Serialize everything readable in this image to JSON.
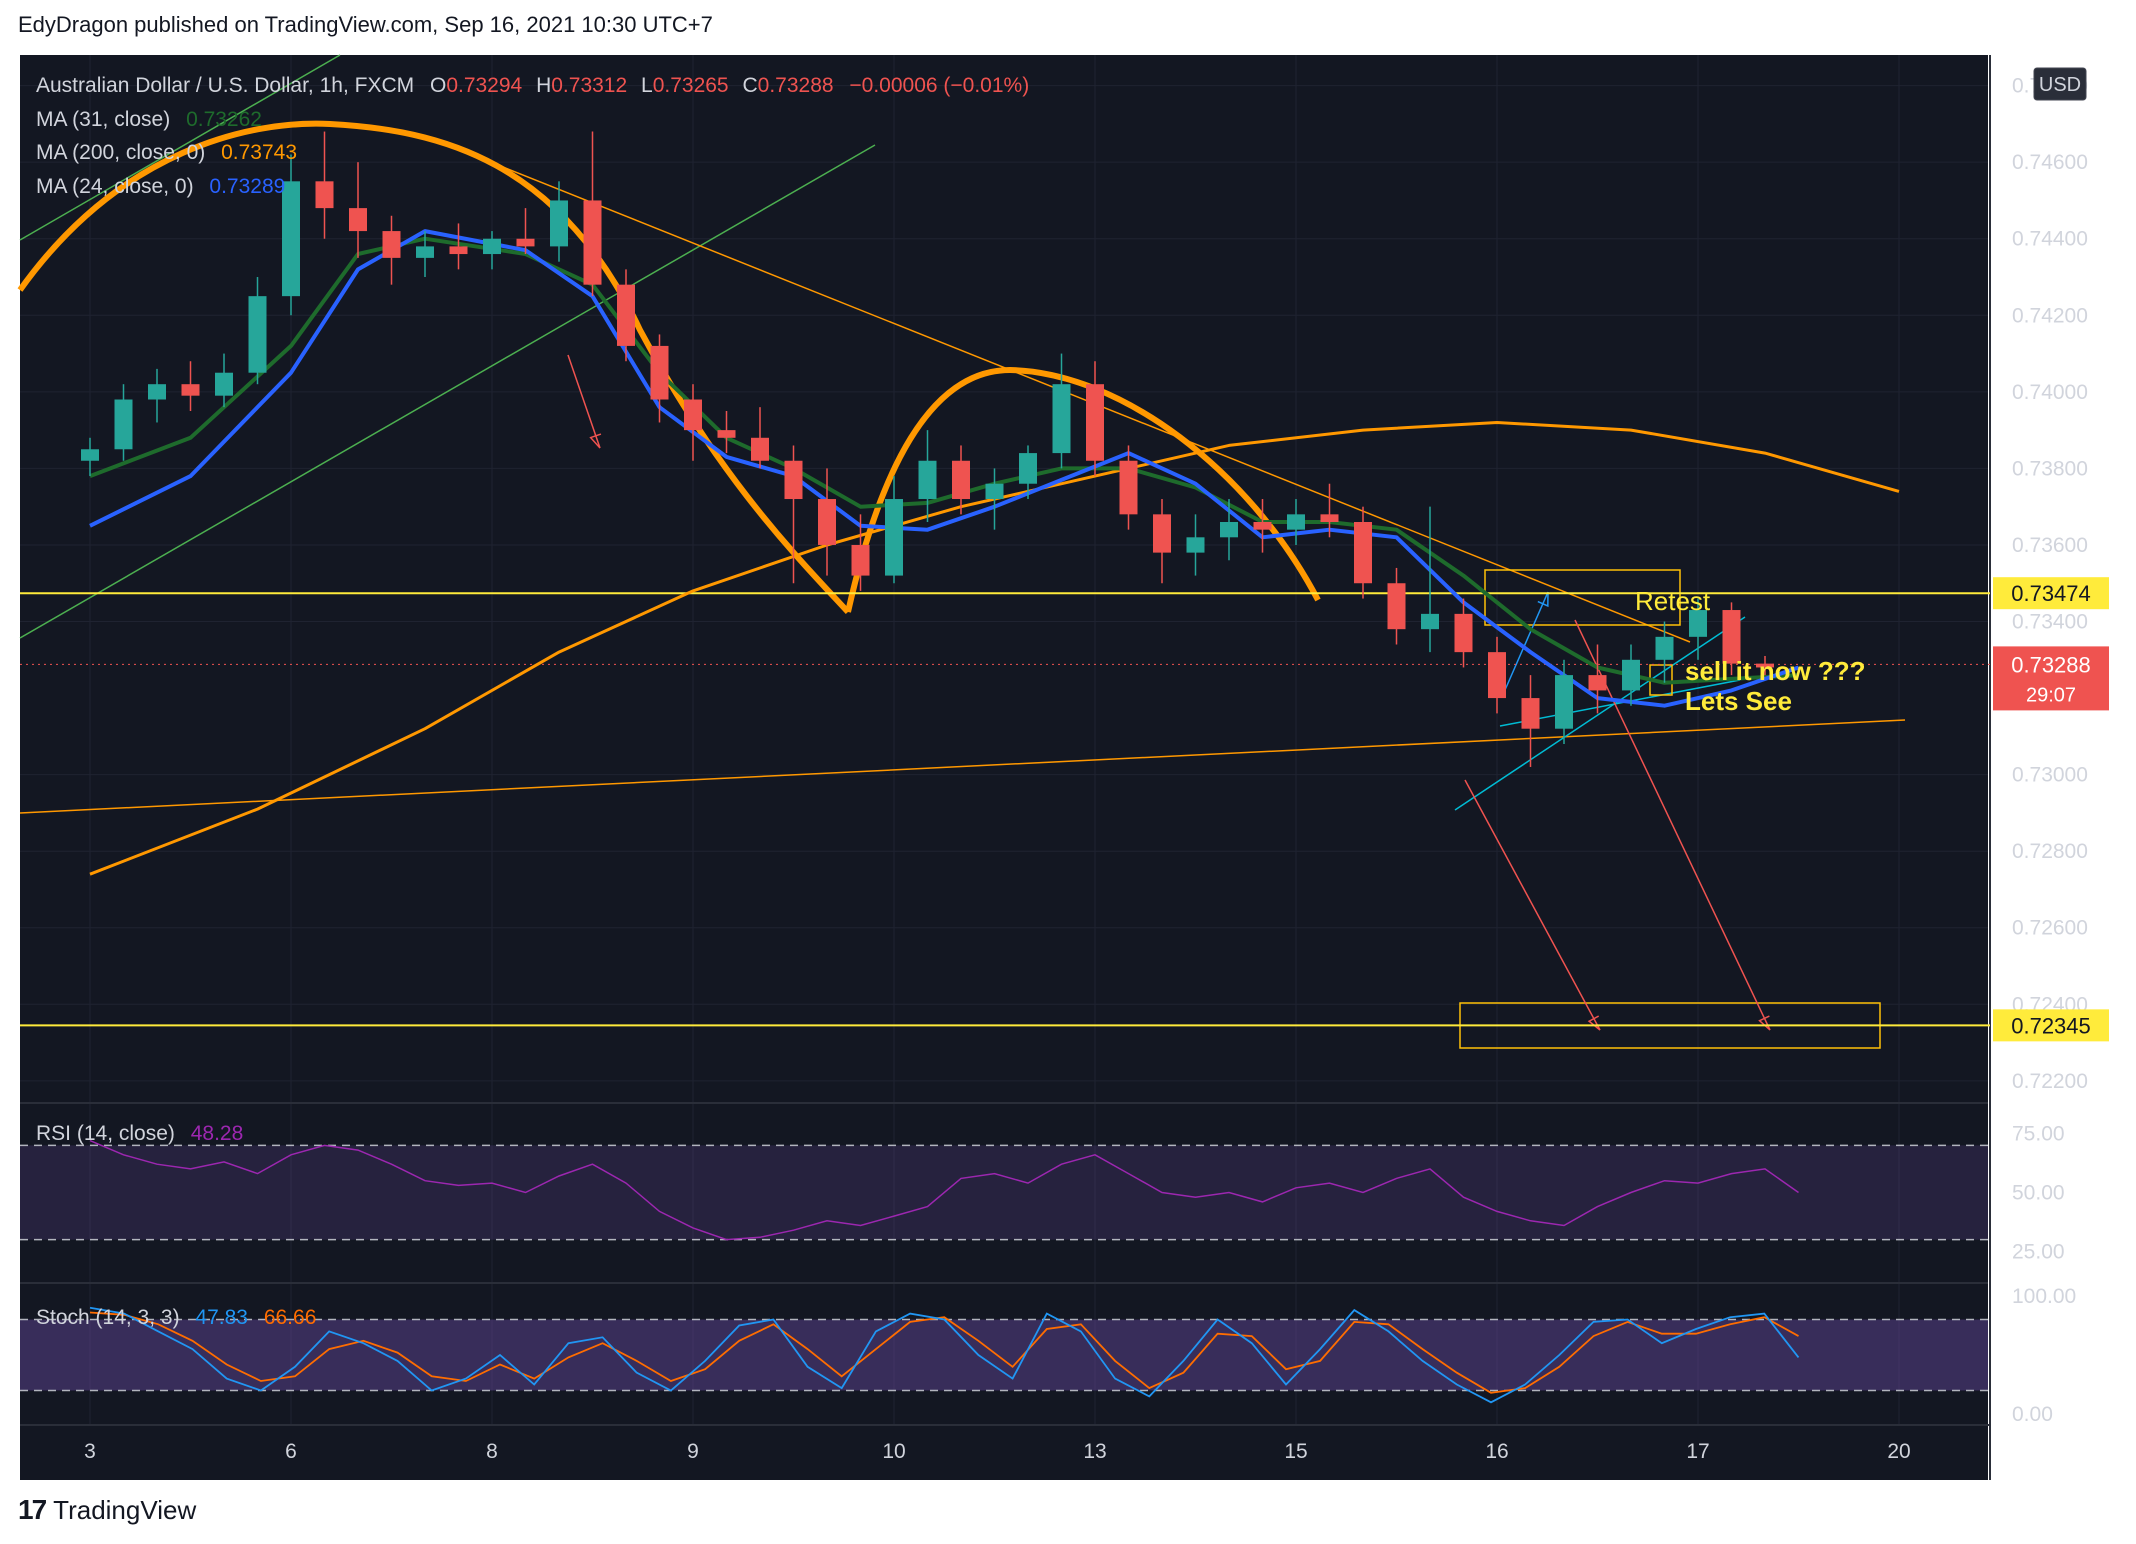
{
  "header": {
    "published": "EdyDragon published on TradingView.com, Sep 16, 2021 10:30 UTC+7"
  },
  "footer": {
    "brand": "TradingView",
    "logo_icon": "tradingview-logo-icon"
  },
  "legend": {
    "symbol": "Australian Dollar / U.S. Dollar, 1h, FXCM",
    "ohlc": [
      {
        "k": "O",
        "v": "0.73294"
      },
      {
        "k": "H",
        "v": "0.73312"
      },
      {
        "k": "L",
        "v": "0.73265"
      },
      {
        "k": "C",
        "v": "0.73288"
      }
    ],
    "change": "−0.00006 (−0.01%)",
    "ma31_label": "MA (31, close)",
    "ma31_value": "0.73262",
    "ma200_label": "MA (200, close, 0)",
    "ma200_value": "0.73743",
    "ma24_label": "MA (24, close, 0)",
    "ma24_value": "0.73289"
  },
  "colors": {
    "background": "#131722",
    "up": "#26a69a",
    "down": "#ef5350",
    "ma31": "#1e6b2c",
    "ma200": "#ff9800",
    "ma24": "#2962ff",
    "level": "#ffeb3b",
    "trend": "#ff9800",
    "rsi": "#9c27b0",
    "stoch_k": "#2196f3",
    "stoch_d": "#ff6d00"
  },
  "chart_data": {
    "type": "candlestick",
    "title": "Australian Dollar / U.S. Dollar, 1h, FXCM",
    "currency": "USD",
    "ylim": [
      0.7215,
      0.7488
    ],
    "y_ticks": [
      "0.74800",
      "0.74600",
      "0.74400",
      "0.74200",
      "0.74000",
      "0.73800",
      "0.73600",
      "0.73400",
      "0.73000",
      "0.72800",
      "0.72600",
      "0.72400",
      "0.72200"
    ],
    "x_ticks": [
      "3",
      "6",
      "8",
      "9",
      "10",
      "13",
      "15",
      "16",
      "17",
      "20"
    ],
    "x_tick_pos": [
      0,
      6,
      12,
      18,
      24,
      30,
      36,
      42,
      48,
      54
    ],
    "last_price": "0.73288",
    "countdown": "29:07",
    "levels": [
      {
        "label": "0.73474",
        "value": 0.73474
      },
      {
        "label": "0.72345",
        "value": 0.72345
      }
    ],
    "annotations": [
      "Retest",
      "sell it now ???",
      "Lets See"
    ],
    "ma31": [
      [
        0,
        0.7378
      ],
      [
        3,
        0.7388
      ],
      [
        6,
        0.7412
      ],
      [
        8,
        0.7436
      ],
      [
        10,
        0.744
      ],
      [
        13,
        0.7436
      ],
      [
        15,
        0.7428
      ],
      [
        17,
        0.7405
      ],
      [
        19,
        0.7388
      ],
      [
        21,
        0.738
      ],
      [
        23,
        0.737
      ],
      [
        25,
        0.7371
      ],
      [
        27,
        0.7376
      ],
      [
        29,
        0.738
      ],
      [
        31,
        0.738
      ],
      [
        33,
        0.7375
      ],
      [
        35,
        0.7366
      ],
      [
        37,
        0.7366
      ],
      [
        39,
        0.7364
      ],
      [
        41,
        0.7352
      ],
      [
        43,
        0.7338
      ],
      [
        45,
        0.7328
      ],
      [
        47,
        0.7324
      ],
      [
        49,
        0.7325
      ],
      [
        51,
        0.7326
      ]
    ],
    "ma200": [
      [
        0,
        0.7274
      ],
      [
        5,
        0.7291
      ],
      [
        10,
        0.7312
      ],
      [
        14,
        0.7332
      ],
      [
        18,
        0.7348
      ],
      [
        22,
        0.736
      ],
      [
        26,
        0.737
      ],
      [
        30,
        0.7378
      ],
      [
        34,
        0.7386
      ],
      [
        38,
        0.739
      ],
      [
        42,
        0.7392
      ],
      [
        46,
        0.739
      ],
      [
        50,
        0.7384
      ],
      [
        54,
        0.7374
      ]
    ],
    "ma24": [
      [
        0,
        0.7365
      ],
      [
        3,
        0.7378
      ],
      [
        6,
        0.7405
      ],
      [
        8,
        0.7432
      ],
      [
        10,
        0.7442
      ],
      [
        13,
        0.7437
      ],
      [
        15,
        0.7425
      ],
      [
        17,
        0.7396
      ],
      [
        19,
        0.7383
      ],
      [
        21,
        0.7378
      ],
      [
        23,
        0.7365
      ],
      [
        25,
        0.7364
      ],
      [
        27,
        0.737
      ],
      [
        29,
        0.7377
      ],
      [
        31,
        0.7384
      ],
      [
        33,
        0.7376
      ],
      [
        35,
        0.7362
      ],
      [
        37,
        0.7364
      ],
      [
        39,
        0.7362
      ],
      [
        41,
        0.7345
      ],
      [
        43,
        0.7332
      ],
      [
        45,
        0.732
      ],
      [
        47,
        0.7318
      ],
      [
        49,
        0.7322
      ],
      [
        51,
        0.7328
      ]
    ],
    "candles": [
      [
        0,
        0.7382,
        0.7388,
        0.7378,
        0.7385
      ],
      [
        1,
        0.7385,
        0.7402,
        0.7382,
        0.7398
      ],
      [
        2,
        0.7398,
        0.7406,
        0.7392,
        0.7402
      ],
      [
        3,
        0.7402,
        0.7408,
        0.7395,
        0.7399
      ],
      [
        4,
        0.7399,
        0.741,
        0.7396,
        0.7405
      ],
      [
        5,
        0.7405,
        0.743,
        0.7402,
        0.7425
      ],
      [
        6,
        0.7425,
        0.7462,
        0.742,
        0.7455
      ],
      [
        7,
        0.7455,
        0.7468,
        0.744,
        0.7448
      ],
      [
        8,
        0.7448,
        0.746,
        0.7435,
        0.7442
      ],
      [
        9,
        0.7442,
        0.7446,
        0.7428,
        0.7435
      ],
      [
        10,
        0.7435,
        0.7442,
        0.743,
        0.7438
      ],
      [
        11,
        0.7438,
        0.7444,
        0.7432,
        0.7436
      ],
      [
        12,
        0.7436,
        0.7442,
        0.7432,
        0.744
      ],
      [
        13,
        0.744,
        0.7448,
        0.7436,
        0.7438
      ],
      [
        14,
        0.7438,
        0.7455,
        0.7434,
        0.745
      ],
      [
        15,
        0.745,
        0.7468,
        0.7425,
        0.7428
      ],
      [
        16,
        0.7428,
        0.7432,
        0.7408,
        0.7412
      ],
      [
        17,
        0.7412,
        0.7415,
        0.7392,
        0.7398
      ],
      [
        18,
        0.7398,
        0.7402,
        0.7382,
        0.739
      ],
      [
        19,
        0.739,
        0.7395,
        0.7384,
        0.7388
      ],
      [
        20,
        0.7388,
        0.7396,
        0.738,
        0.7382
      ],
      [
        21,
        0.7382,
        0.7386,
        0.735,
        0.7372
      ],
      [
        22,
        0.7372,
        0.738,
        0.7352,
        0.736
      ],
      [
        23,
        0.736,
        0.7368,
        0.7348,
        0.7352
      ],
      [
        24,
        0.7352,
        0.7378,
        0.735,
        0.7372
      ],
      [
        25,
        0.7372,
        0.739,
        0.7366,
        0.7382
      ],
      [
        26,
        0.7382,
        0.7386,
        0.7368,
        0.7372
      ],
      [
        27,
        0.7372,
        0.738,
        0.7364,
        0.7376
      ],
      [
        28,
        0.7376,
        0.7386,
        0.7372,
        0.7384
      ],
      [
        29,
        0.7384,
        0.741,
        0.738,
        0.7402
      ],
      [
        30,
        0.7402,
        0.7408,
        0.7378,
        0.7382
      ],
      [
        31,
        0.7382,
        0.7386,
        0.7364,
        0.7368
      ],
      [
        32,
        0.7368,
        0.7372,
        0.735,
        0.7358
      ],
      [
        33,
        0.7358,
        0.7368,
        0.7352,
        0.7362
      ],
      [
        34,
        0.7362,
        0.7372,
        0.7356,
        0.7366
      ],
      [
        35,
        0.7366,
        0.7372,
        0.7358,
        0.7364
      ],
      [
        36,
        0.7364,
        0.7372,
        0.736,
        0.7368
      ],
      [
        37,
        0.7368,
        0.7376,
        0.7362,
        0.7366
      ],
      [
        38,
        0.7366,
        0.737,
        0.7346,
        0.735
      ],
      [
        39,
        0.735,
        0.7354,
        0.7334,
        0.7338
      ],
      [
        40,
        0.7338,
        0.737,
        0.7332,
        0.7342
      ],
      [
        41,
        0.7342,
        0.7346,
        0.7328,
        0.7332
      ],
      [
        42,
        0.7332,
        0.7336,
        0.7316,
        0.732
      ],
      [
        43,
        0.732,
        0.7326,
        0.7302,
        0.7312
      ],
      [
        44,
        0.7312,
        0.733,
        0.7308,
        0.7326
      ],
      [
        45,
        0.7326,
        0.7334,
        0.7316,
        0.7322
      ],
      [
        46,
        0.7322,
        0.7334,
        0.7318,
        0.733
      ],
      [
        47,
        0.733,
        0.734,
        0.7324,
        0.7336
      ],
      [
        48,
        0.7336,
        0.7346,
        0.733,
        0.7343
      ],
      [
        49,
        0.7343,
        0.7345,
        0.7326,
        0.7329
      ],
      [
        50,
        0.7329,
        0.7331,
        0.7326,
        0.7328
      ]
    ],
    "rsi": {
      "label": "RSI (14, close)",
      "value": "48.28",
      "upper": 70,
      "lower": 30,
      "y_ticks": [
        "75.00",
        "50.00",
        "25.00"
      ],
      "values": [
        72,
        66,
        62,
        60,
        63,
        58,
        66,
        70,
        68,
        62,
        55,
        53,
        54,
        50,
        57,
        62,
        54,
        42,
        35,
        30,
        31,
        34,
        38,
        36,
        40,
        44,
        56,
        58,
        54,
        62,
        66,
        58,
        50,
        48,
        50,
        46,
        52,
        54,
        50,
        56,
        60,
        48,
        42,
        38,
        36,
        44,
        50,
        55,
        54,
        58,
        60,
        50
      ]
    },
    "stoch": {
      "label": "Stoch (14, 3, 3)",
      "k_value": "47.83",
      "d_value": "66.66",
      "upper": 80,
      "lower": 20,
      "y_ticks": [
        "100.00",
        "0.00"
      ],
      "k": [
        90,
        85,
        70,
        55,
        30,
        20,
        40,
        70,
        60,
        45,
        20,
        30,
        50,
        25,
        60,
        65,
        35,
        20,
        45,
        75,
        80,
        40,
        22,
        70,
        85,
        80,
        50,
        30,
        85,
        70,
        30,
        15,
        45,
        80,
        60,
        25,
        55,
        88,
        70,
        45,
        25,
        10,
        25,
        50,
        78,
        80,
        60,
        72,
        82,
        85,
        48
      ],
      "d": [
        86,
        84,
        76,
        62,
        42,
        28,
        32,
        55,
        62,
        52,
        32,
        28,
        42,
        30,
        48,
        60,
        45,
        28,
        38,
        62,
        76,
        55,
        32,
        55,
        78,
        82,
        62,
        40,
        72,
        76,
        45,
        22,
        35,
        68,
        66,
        38,
        45,
        78,
        76,
        55,
        35,
        18,
        22,
        40,
        66,
        78,
        68,
        68,
        76,
        82,
        66
      ]
    }
  }
}
